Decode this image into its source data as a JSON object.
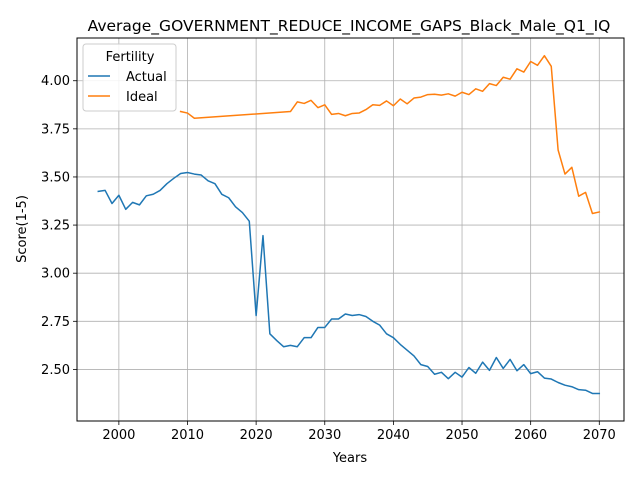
{
  "chart_data": {
    "type": "line",
    "title": "Average_GOVERNMENT_REDUCE_INCOME_GAPS_Black_Male_Q1_IQ",
    "xlabel": "Years",
    "ylabel": "Score(1-5)",
    "xlim": [
      1993.9,
      2073.6
    ],
    "ylim": [
      2.232,
      4.222
    ],
    "xticks": [
      2000,
      2010,
      2020,
      2030,
      2040,
      2050,
      2060,
      2070
    ],
    "yticks": [
      2.5,
      2.75,
      3.0,
      3.25,
      3.5,
      3.75,
      4.0
    ],
    "ytick_labels": [
      "2.50",
      "2.75",
      "3.00",
      "3.25",
      "3.50",
      "3.75",
      "4.00"
    ],
    "grid": true,
    "legend": {
      "title": "Fertility",
      "placement": "top-left"
    },
    "series": [
      {
        "name": "Actual",
        "color": "#1f77b4",
        "x": [
          1997,
          1998,
          1999,
          2000,
          2001,
          2002,
          2003,
          2004,
          2005,
          2006,
          2007,
          2008,
          2009,
          2010,
          2011,
          2012,
          2013,
          2014,
          2015,
          2016,
          2017,
          2018,
          2019,
          2020,
          2021,
          2022,
          2023,
          2024,
          2025,
          2026,
          2027,
          2028,
          2029,
          2030,
          2031,
          2032,
          2033,
          2034,
          2035,
          2036,
          2037,
          2038,
          2039,
          2040,
          2041,
          2042,
          2043,
          2044,
          2045,
          2046,
          2047,
          2048,
          2049,
          2050,
          2051,
          2052,
          2053,
          2054,
          2055,
          2056,
          2057,
          2058,
          2059,
          2060,
          2061,
          2062,
          2063,
          2064,
          2065,
          2066,
          2067,
          2068,
          2069,
          2070
        ],
        "y": [
          3.425,
          3.43,
          3.362,
          3.405,
          3.332,
          3.368,
          3.355,
          3.402,
          3.41,
          3.43,
          3.465,
          3.493,
          3.518,
          3.523,
          3.515,
          3.51,
          3.48,
          3.465,
          3.41,
          3.392,
          3.345,
          3.315,
          3.27,
          2.78,
          3.195,
          2.685,
          2.65,
          2.618,
          2.625,
          2.618,
          2.665,
          2.665,
          2.718,
          2.718,
          2.762,
          2.762,
          2.788,
          2.78,
          2.785,
          2.775,
          2.75,
          2.73,
          2.685,
          2.665,
          2.63,
          2.6,
          2.57,
          2.525,
          2.515,
          2.475,
          2.485,
          2.452,
          2.485,
          2.46,
          2.51,
          2.48,
          2.538,
          2.495,
          2.562,
          2.505,
          2.552,
          2.493,
          2.525,
          2.478,
          2.488,
          2.455,
          2.45,
          2.432,
          2.418,
          2.41,
          2.395,
          2.392,
          2.375,
          2.375
        ]
      },
      {
        "name": "Ideal",
        "color": "#ff7f0e",
        "x": [
          2009,
          2010,
          2011,
          2025,
          2026,
          2027,
          2028,
          2029,
          2030,
          2031,
          2032,
          2033,
          2034,
          2035,
          2036,
          2037,
          2038,
          2039,
          2040,
          2041,
          2042,
          2043,
          2044,
          2045,
          2046,
          2047,
          2048,
          2049,
          2050,
          2051,
          2052,
          2053,
          2054,
          2055,
          2056,
          2057,
          2058,
          2059,
          2060,
          2061,
          2062,
          2063,
          2064,
          2065,
          2066,
          2067,
          2068,
          2069,
          2070
        ],
        "y": [
          3.84,
          3.832,
          3.805,
          3.84,
          3.89,
          3.882,
          3.898,
          3.86,
          3.875,
          3.825,
          3.83,
          3.818,
          3.83,
          3.832,
          3.85,
          3.875,
          3.872,
          3.895,
          3.87,
          3.905,
          3.88,
          3.91,
          3.915,
          3.928,
          3.93,
          3.925,
          3.932,
          3.92,
          3.94,
          3.928,
          3.958,
          3.945,
          3.985,
          3.975,
          4.018,
          4.008,
          4.062,
          4.045,
          4.1,
          4.08,
          4.13,
          4.075,
          3.64,
          3.515,
          3.55,
          3.4,
          3.42,
          3.31,
          3.318
        ]
      }
    ]
  }
}
